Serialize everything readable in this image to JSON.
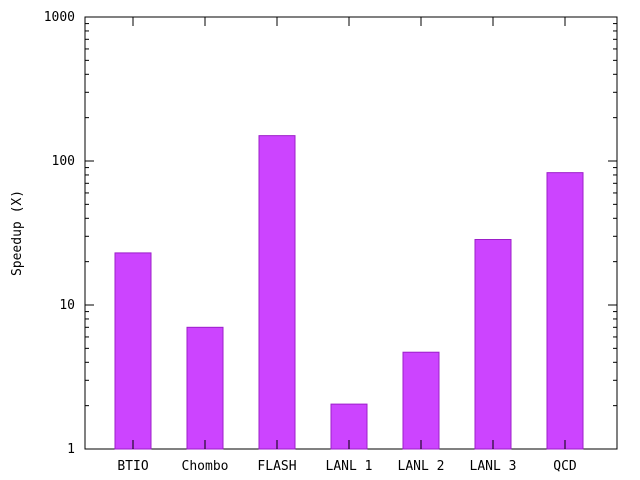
{
  "chart_data": {
    "type": "bar",
    "title": "",
    "xlabel": "",
    "ylabel": "Speedup (X)",
    "yscale": "log",
    "ylim": [
      1,
      1000
    ],
    "y_ticks": [
      1,
      10,
      100,
      1000
    ],
    "grid": false,
    "bar_color": "#cc44ff",
    "bar_edge_color": "#9c1fc9",
    "categories": [
      "BTIO",
      "Chombo",
      "FLASH",
      "LANL 1",
      "LANL 2",
      "LANL 3",
      "QCD"
    ],
    "values": [
      23,
      7,
      150,
      2.05,
      4.7,
      28.5,
      83
    ]
  }
}
